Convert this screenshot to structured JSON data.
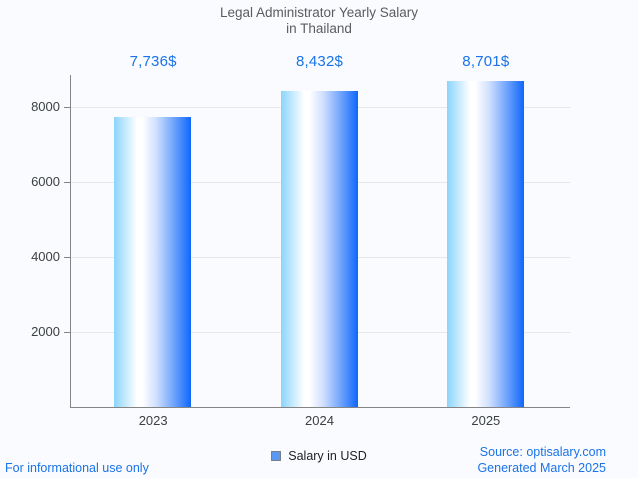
{
  "chart": {
    "title_line1": "Legal Administrator Yearly Salary",
    "title_line2": "in Thailand",
    "legend_label": "Salary in USD"
  },
  "footer": {
    "left_note": "For informational use only",
    "source": "Source: optisalary.com",
    "generated": "Generated March 2025"
  },
  "colors": {
    "background": "#fafbfe",
    "accent_blue": "#1a73e8",
    "title_gray": "#5a5c60",
    "axis_gray": "#848484",
    "gridline_gray": "#e5e7ea",
    "bar_gradient_left": "#8bd4fc",
    "bar_gradient_middle": "#ffffff",
    "bar_gradient_right": "#0f67fb",
    "legend_swatch_blue": "#5b97f0"
  },
  "chart_data": {
    "type": "bar",
    "title": "Legal Administrator Yearly Salary in Thailand",
    "categories": [
      "2023",
      "2024",
      "2025"
    ],
    "series": [
      {
        "name": "Salary in USD",
        "values": [
          7736,
          8432,
          8701
        ]
      }
    ],
    "value_labels": [
      "7,736$",
      "8,432$",
      "8,701$"
    ],
    "xlabel": "",
    "ylabel": "",
    "yticks": [
      2000,
      4000,
      6000,
      8000
    ],
    "ylim": [
      0,
      8853
    ],
    "grid": true,
    "legend_position": "bottom"
  }
}
